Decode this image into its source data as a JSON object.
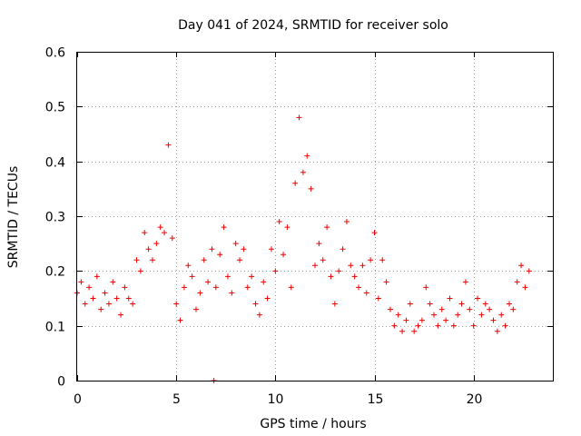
{
  "chart_data": {
    "type": "scatter",
    "title": "Day 041 of 2024, SRMTID for receiver solo",
    "xlabel": "GPS time / hours",
    "ylabel": "SRMTID / TECUs",
    "xlim": [
      0,
      24
    ],
    "ylim": [
      0,
      0.6
    ],
    "xticks": [
      0,
      5,
      10,
      15,
      20
    ],
    "xtick_labels": [
      "0",
      "5",
      "10",
      "15",
      "20"
    ],
    "yticks": [
      0,
      0.1,
      0.2,
      0.3,
      0.4,
      0.5,
      0.6
    ],
    "ytick_labels": [
      "0",
      "0.1",
      "0.2",
      "0.3",
      "0.4",
      "0.5",
      "0.6"
    ],
    "grid": true,
    "marker": "plus",
    "color": "#ee0000",
    "series": [
      {
        "name": "SRMTID",
        "x": [
          0.0,
          0.2,
          0.4,
          0.6,
          0.8,
          1.0,
          1.2,
          1.4,
          1.6,
          1.8,
          2.0,
          2.2,
          2.4,
          2.6,
          2.8,
          3.0,
          3.2,
          3.4,
          3.6,
          3.8,
          4.0,
          4.2,
          4.4,
          4.6,
          4.8,
          5.0,
          5.2,
          5.4,
          5.6,
          5.8,
          6.0,
          6.2,
          6.4,
          6.6,
          6.8,
          7.0,
          7.2,
          7.4,
          7.6,
          7.8,
          8.0,
          8.2,
          8.4,
          8.6,
          8.8,
          9.0,
          9.2,
          9.4,
          9.6,
          9.8,
          10.0,
          10.2,
          10.4,
          10.6,
          10.8,
          11.0,
          11.2,
          11.4,
          11.6,
          11.8,
          12.0,
          12.2,
          12.4,
          12.6,
          12.8,
          13.0,
          13.2,
          13.4,
          13.6,
          13.8,
          14.0,
          14.2,
          14.4,
          14.6,
          14.8,
          15.0,
          15.2,
          15.4,
          15.6,
          15.8,
          16.0,
          16.2,
          16.4,
          16.6,
          16.8,
          17.0,
          17.2,
          17.4,
          17.6,
          17.8,
          18.0,
          18.2,
          18.4,
          18.6,
          18.8,
          19.0,
          19.2,
          19.4,
          19.6,
          19.8,
          20.0,
          20.2,
          20.4,
          20.6,
          20.8,
          21.0,
          21.2,
          21.4,
          21.6,
          21.8,
          22.0,
          22.2,
          22.4,
          22.6,
          22.8,
          6.9
        ],
        "y": [
          0.16,
          0.18,
          0.14,
          0.17,
          0.15,
          0.19,
          0.13,
          0.16,
          0.14,
          0.18,
          0.15,
          0.12,
          0.17,
          0.15,
          0.14,
          0.22,
          0.2,
          0.27,
          0.24,
          0.22,
          0.25,
          0.28,
          0.27,
          0.43,
          0.26,
          0.14,
          0.11,
          0.17,
          0.21,
          0.19,
          0.13,
          0.16,
          0.22,
          0.18,
          0.24,
          0.17,
          0.23,
          0.28,
          0.19,
          0.16,
          0.25,
          0.22,
          0.24,
          0.17,
          0.19,
          0.14,
          0.12,
          0.18,
          0.15,
          0.24,
          0.2,
          0.29,
          0.23,
          0.28,
          0.17,
          0.36,
          0.48,
          0.38,
          0.41,
          0.35,
          0.21,
          0.25,
          0.22,
          0.28,
          0.19,
          0.14,
          0.2,
          0.24,
          0.29,
          0.21,
          0.19,
          0.17,
          0.21,
          0.16,
          0.22,
          0.27,
          0.15,
          0.22,
          0.18,
          0.13,
          0.1,
          0.12,
          0.09,
          0.11,
          0.14,
          0.09,
          0.1,
          0.11,
          0.17,
          0.14,
          0.12,
          0.1,
          0.13,
          0.11,
          0.15,
          0.1,
          0.12,
          0.14,
          0.18,
          0.13,
          0.1,
          0.15,
          0.12,
          0.14,
          0.13,
          0.11,
          0.09,
          0.12,
          0.1,
          0.14,
          0.13,
          0.18,
          0.21,
          0.17,
          0.2,
          0.0
        ]
      }
    ]
  }
}
